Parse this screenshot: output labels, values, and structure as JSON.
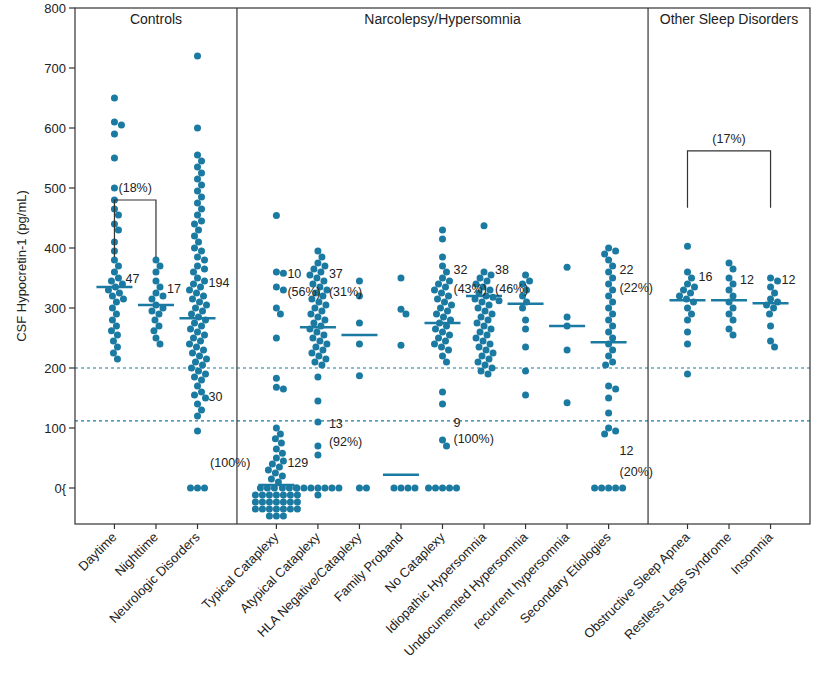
{
  "chart_data": {
    "type": "strip",
    "y_label": "CSF Hypocretin-1 (pg/mL)",
    "ylim": [
      -60,
      800
    ],
    "yticks": [
      {
        "value": 0,
        "label": "0{"
      },
      100,
      200,
      300,
      400,
      500,
      600,
      700,
      800
    ],
    "reference_lines": [
      200,
      112
    ],
    "color": "#1b7aa2",
    "marker": "circle",
    "panels": [
      {
        "title": "Controls",
        "brackets": [
          {
            "from": 0,
            "to": 1,
            "y": 480,
            "text": "(18%)"
          }
        ],
        "categories": [
          {
            "name": "Daytime",
            "median": 335,
            "values": [
              650,
              610,
              605,
              590,
              550,
              500,
              480,
              465,
              455,
              440,
              430,
              410,
              395,
              380,
              370,
              360,
              350,
              345,
              340,
              335,
              330,
              325,
              320,
              315,
              310,
              300,
              290,
              280,
              270,
              262,
              255,
              245,
              235,
              225,
              215
            ],
            "labels": [
              {
                "text": "47",
                "y": 350
              }
            ]
          },
          {
            "name": "Nighttime",
            "median": 305,
            "values": [
              380,
              370,
              360,
              345,
              335,
              325,
              320,
              315,
              305,
              300,
              295,
              290,
              280,
              270,
              262,
              250,
              240
            ],
            "labels": [
              {
                "text": "17",
                "y": 333
              }
            ]
          },
          {
            "name": "Neurologic Disorders",
            "median": 283,
            "values": [
              720,
              600,
              555,
              545,
              535,
              525,
              515,
              505,
              495,
              485,
              475,
              465,
              455,
              445,
              440,
              430,
              420,
              410,
              400,
              395,
              385,
              380,
              370,
              365,
              360,
              350,
              345,
              340,
              335,
              330,
              325,
              320,
              315,
              310,
              305,
              300,
              295,
              290,
              285,
              280,
              275,
              270,
              265,
              260,
              255,
              250,
              245,
              240,
              235,
              230,
              225,
              220,
              215,
              210,
              205,
              200,
              195,
              190,
              185,
              180,
              170,
              160,
              155,
              150,
              140,
              130,
              120,
              95,
              0,
              0,
              0
            ],
            "labels": [
              {
                "text": "194",
                "y": 343
              },
              {
                "text": "30",
                "y": 152
              }
            ]
          }
        ]
      },
      {
        "title": "Narcolepsy/Hypersomnia",
        "brackets": [],
        "categories": [
          {
            "name": "Typical Cataplexy",
            "median": 5,
            "values": [
              454,
              360,
              358,
              335,
              330,
              300,
              290,
              250,
              183,
              168,
              165,
              100,
              90,
              82,
              75,
              65,
              58,
              50,
              45,
              40,
              35,
              30,
              25,
              20,
              15,
              10,
              0,
              0,
              0,
              0,
              0,
              0,
              0,
              0,
              0,
              0,
              0,
              0,
              0,
              0,
              0,
              0,
              0,
              0,
              0,
              0,
              0,
              0,
              0,
              0,
              0,
              0,
              0,
              0,
              0,
              0
            ],
            "labels": [
              {
                "text": "10",
                "y": 358
              },
              {
                "text": "(56%)",
                "y": 328
              },
              {
                "text": "(100%)",
                "y": 42,
                "align": "left"
              },
              {
                "text": "129",
                "y": 42
              }
            ]
          },
          {
            "name": "Atypical Cataplexy",
            "median": 268,
            "values": [
              395,
              385,
              375,
              370,
              365,
              360,
              355,
              350,
              345,
              340,
              335,
              330,
              325,
              320,
              315,
              310,
              305,
              300,
              295,
              290,
              285,
              280,
              275,
              270,
              265,
              260,
              255,
              250,
              245,
              240,
              235,
              230,
              225,
              220,
              215,
              210,
              205,
              185,
              145,
              110,
              70,
              55,
              0,
              0,
              0,
              0,
              0,
              0,
              0,
              0
            ],
            "labels": [
              {
                "text": "37",
                "y": 357
              },
              {
                "text": "(31%)",
                "y": 328
              },
              {
                "text": "13",
                "y": 107
              },
              {
                "text": "(92%)",
                "y": 78
              }
            ]
          },
          {
            "name": "HLA Negative/Cataplexy",
            "median": 255,
            "values": [
              345,
              320,
              275,
              240,
              187,
              0,
              0
            ],
            "labels": []
          },
          {
            "name": "Family Proband",
            "median": 22,
            "values": [
              350,
              298,
              290,
              238,
              0,
              0,
              0,
              0
            ],
            "labels": []
          },
          {
            "name": "No Cataplexy",
            "median": 275,
            "values": [
              430,
              415,
              385,
              370,
              360,
              350,
              345,
              340,
              335,
              330,
              325,
              320,
              315,
              310,
              305,
              300,
              295,
              290,
              285,
              280,
              275,
              270,
              265,
              260,
              255,
              250,
              245,
              240,
              235,
              230,
              220,
              210,
              160,
              140,
              80,
              70,
              0,
              0,
              0,
              0,
              0
            ],
            "labels": [
              {
                "text": "32",
                "y": 365
              },
              {
                "text": "(43%)",
                "y": 333
              },
              {
                "text": "9",
                "y": 110
              },
              {
                "text": "(100%)",
                "y": 82
              }
            ]
          },
          {
            "name": "Idiopathic Hypersomnia",
            "median": 320,
            "values": [
              437,
              360,
              355,
              350,
              345,
              340,
              335,
              330,
              325,
              320,
              318,
              315,
              312,
              310,
              305,
              300,
              295,
              290,
              285,
              280,
              275,
              270,
              265,
              260,
              255,
              250,
              245,
              240,
              235,
              230,
              225,
              220,
              215,
              210,
              205,
              200,
              195,
              190
            ],
            "labels": [
              {
                "text": "38",
                "y": 365
              },
              {
                "text": "(46%)",
                "y": 332
              }
            ]
          },
          {
            "name": "Undocumented Hypersomnia",
            "median": 307,
            "values": [
              355,
              345,
              340,
              330,
              320,
              310,
              300,
              280,
              265,
              235,
              195,
              155
            ],
            "labels": []
          },
          {
            "name": "recurrent hypersomnia",
            "median": 270,
            "values": [
              368,
              285,
              270,
              230,
              142
            ],
            "labels": []
          },
          {
            "name": "Secondary Etiologies",
            "median": 243,
            "values": [
              400,
              395,
              390,
              380,
              370,
              360,
              350,
              340,
              330,
              320,
              310,
              300,
              290,
              280,
              270,
              260,
              250,
              240,
              230,
              220,
              210,
              205,
              170,
              165,
              150,
              125,
              100,
              95,
              90,
              0,
              0,
              0,
              0,
              0
            ],
            "labels": [
              {
                "text": "22",
                "y": 365
              },
              {
                "text": "(22%)",
                "y": 335
              },
              {
                "text": "12",
                "y": 62
              },
              {
                "text": "(20%)",
                "y": 28
              }
            ]
          }
        ]
      },
      {
        "title": "Other Sleep Disorders",
        "brackets": [
          {
            "from": 0,
            "to": 2,
            "y": 562,
            "text": "(17%)"
          }
        ],
        "categories": [
          {
            "name": "Obstructive Sleep Apnea",
            "median": 313,
            "values": [
              403,
              360,
              350,
              340,
              335,
              330,
              325,
              320,
              315,
              310,
              300,
              290,
              280,
              260,
              240,
              190
            ],
            "labels": [
              {
                "text": "16",
                "y": 353
              }
            ]
          },
          {
            "name": "Restless Legs Syndrome",
            "median": 313,
            "values": [
              375,
              365,
              350,
              340,
              330,
              320,
              310,
              300,
              290,
              280,
              265,
              255
            ],
            "labels": [
              {
                "text": "12",
                "y": 348
              }
            ]
          },
          {
            "name": "Insomnia",
            "median": 308,
            "values": [
              350,
              345,
              335,
              325,
              315,
              310,
              305,
              300,
              290,
              270,
              245,
              235
            ],
            "labels": [
              {
                "text": "12",
                "y": 348
              }
            ]
          }
        ]
      }
    ]
  }
}
